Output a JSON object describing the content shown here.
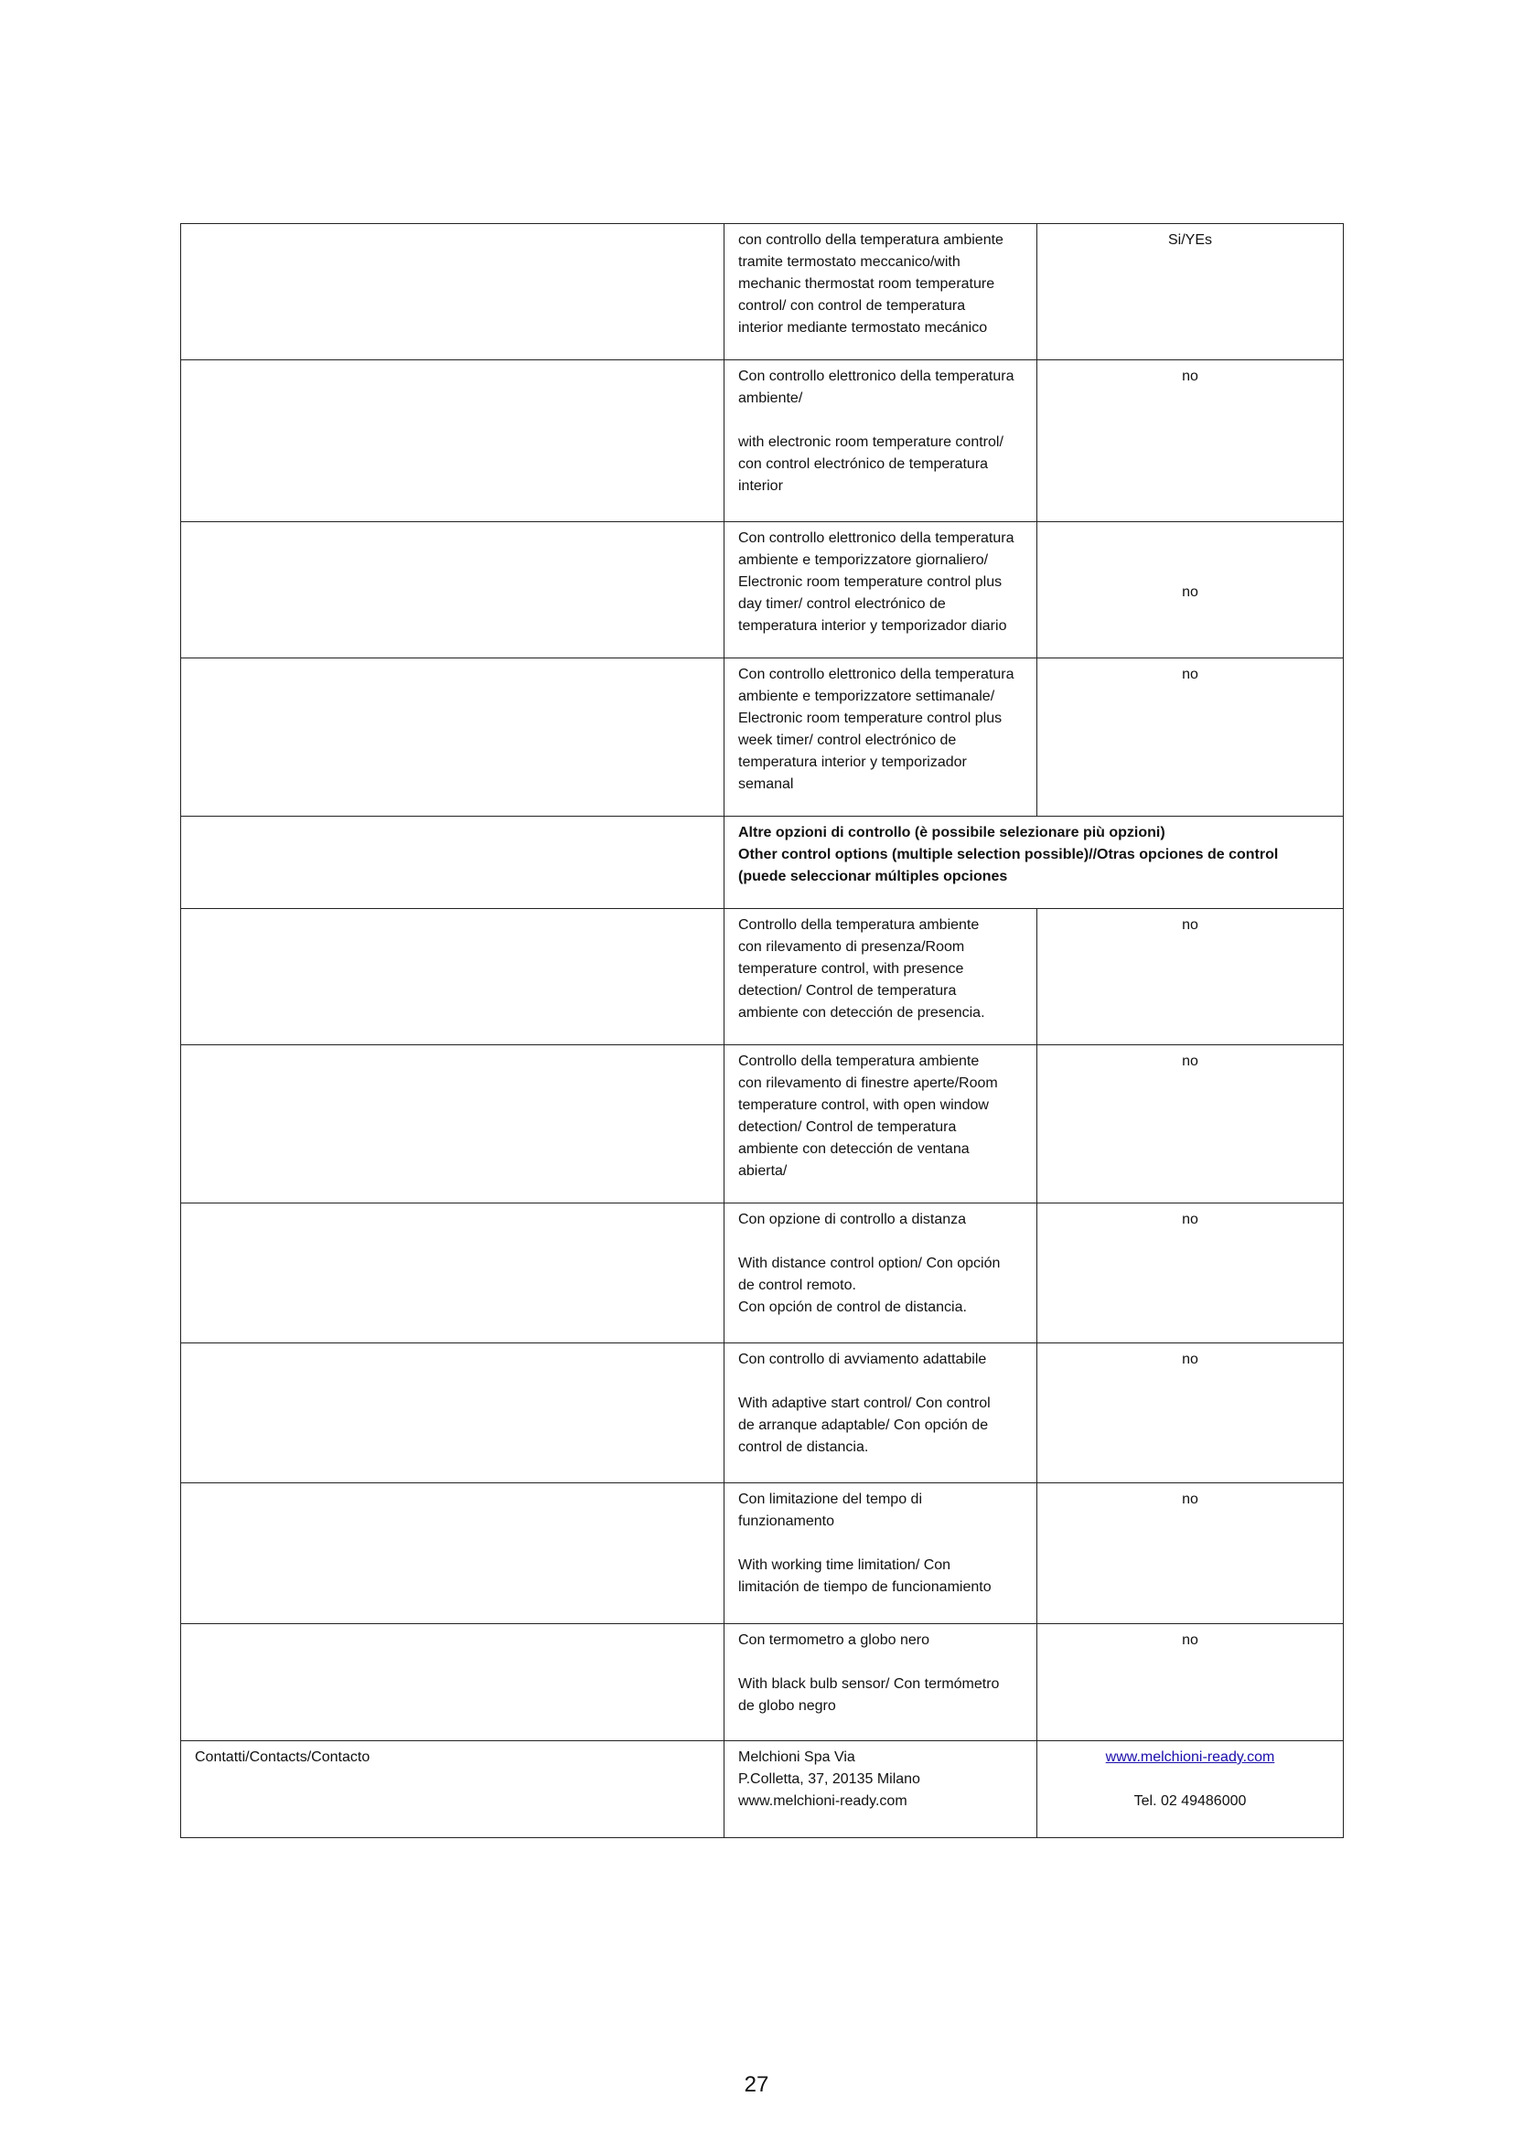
{
  "rows": [
    {
      "desc": "con controllo della temperatura ambiente\ntramite termostato meccanico/with\nmechanic thermostat room temperature\ncontrol/ con control de temperatura\ninterior mediante termostato mecánico",
      "value": "Si/YEs"
    },
    {
      "desc": "Con controllo elettronico della temperatura\nambiente/\n\nwith electronic room temperature control/\ncon control electrónico de temperatura\ninterior",
      "value": "no"
    },
    {
      "desc": "Con controllo elettronico della temperatura\nambiente e temporizzatore giornaliero/\nElectronic room temperature control plus\nday timer/ control electrónico de\ntemperatura interior y temporizador diario",
      "value": "no"
    },
    {
      "desc": "Con controllo elettronico della temperatura\nambiente e temporizzatore settimanale/\nElectronic room temperature control plus\nweek timer/ control electrónico de\ntemperatura interior y temporizador\nsemanal",
      "value": "no"
    },
    {
      "header": "Altre opzioni di controllo (è possibile selezionare più opzioni)\nOther control options (multiple selection possible)//Otras opciones de control\n(puede seleccionar múltiples opciones"
    },
    {
      "desc": "Controllo della temperatura ambiente\ncon rilevamento di presenza/Room\ntemperature control, with presence\ndetection/ Control de temperatura\nambiente con detección de presencia.",
      "value": "no"
    },
    {
      "desc": "Controllo della temperatura ambiente\ncon rilevamento di finestre aperte/Room\ntemperature control, with open window\ndetection/ Control de temperatura\nambiente con detección de ventana\nabierta/",
      "value": "no"
    },
    {
      "desc": "Con opzione di controllo a distanza\n\nWith distance control option/ Con opción\nde control remoto.\nCon opción de control de distancia.",
      "value": "no"
    },
    {
      "desc": "Con controllo di avviamento adattabile\n\nWith adaptive start control/ Con control\nde arranque adaptable/  Con opción de\ncontrol de distancia.",
      "value": "no"
    },
    {
      "desc": "Con limitazione del tempo di\nfunzionamento\n\nWith working time limitation/ Con\nlimitación de tiempo de funcionamiento",
      "value": "no"
    },
    {
      "desc": "Con termometro a globo nero\n\nWith black bulb sensor/ Con termómetro\nde globo negro",
      "value": "no"
    }
  ],
  "contacts": {
    "label": "Contatti/Contacts/Contacto",
    "address": "Melchioni Spa                          Via\nP.Colletta, 37, 20135 Milano\nwww.melchioni-ready.com",
    "link": "www.melchioni-ready.com",
    "phone": "Tel. 02 49486000"
  },
  "page_number": "27"
}
